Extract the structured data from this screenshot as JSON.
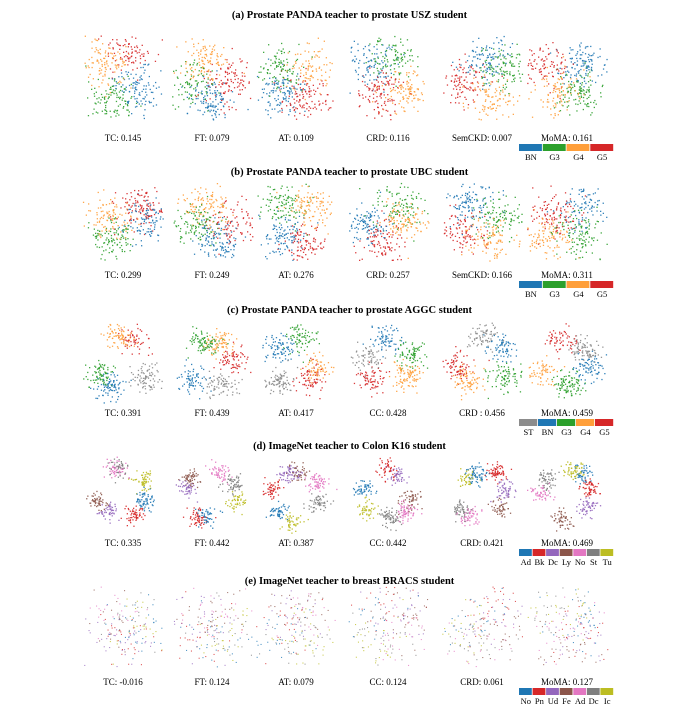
{
  "figure": {
    "rows": [
      {
        "title": "(a) Prostate PANDA teacher to prostate USZ student",
        "panels": [
          {
            "label": "TC: 0.145"
          },
          {
            "label": "FT: 0.079"
          },
          {
            "label": "AT: 0.109"
          },
          {
            "label": "CRD: 0.116"
          },
          {
            "label": "SemCKD: 0.007"
          },
          {
            "label": "MoMA: 0.161"
          }
        ],
        "legend": [
          {
            "name": "BN",
            "color": "#1f77b4"
          },
          {
            "name": "G3",
            "color": "#2ca02c"
          },
          {
            "name": "G4",
            "color": "#ff9f3a"
          },
          {
            "name": "G5",
            "color": "#d62728"
          }
        ]
      },
      {
        "title": "(b) Prostate PANDA teacher to prostate UBC student",
        "panels": [
          {
            "label": "TC: 0.299"
          },
          {
            "label": "FT: 0.249"
          },
          {
            "label": "AT: 0.276"
          },
          {
            "label": "CRD: 0.257"
          },
          {
            "label": "SemCKD: 0.166"
          },
          {
            "label": "MoMA: 0.311"
          }
        ],
        "legend": [
          {
            "name": "BN",
            "color": "#1f77b4"
          },
          {
            "name": "G3",
            "color": "#2ca02c"
          },
          {
            "name": "G4",
            "color": "#ff9f3a"
          },
          {
            "name": "G5",
            "color": "#d62728"
          }
        ]
      },
      {
        "title": "(c) Prostate PANDA teacher to prostate AGGC student",
        "panels": [
          {
            "label": "TC: 0.391"
          },
          {
            "label": "FT: 0.439"
          },
          {
            "label": "AT: 0.417"
          },
          {
            "label": "CC: 0.428"
          },
          {
            "label": "CRD : 0.456"
          },
          {
            "label": "MoMA: 0.459"
          }
        ],
        "legend": [
          {
            "name": "ST",
            "color": "#8c8c8c"
          },
          {
            "name": "BN",
            "color": "#1f77b4"
          },
          {
            "name": "G3",
            "color": "#2ca02c"
          },
          {
            "name": "G4",
            "color": "#ff9f3a"
          },
          {
            "name": "G5",
            "color": "#d62728"
          }
        ]
      },
      {
        "title": "(d) ImageNet teacher to Colon K16 student",
        "panels": [
          {
            "label": "TC: 0.335"
          },
          {
            "label": "FT: 0.442"
          },
          {
            "label": "AT: 0.387"
          },
          {
            "label": "CC: 0.442"
          },
          {
            "label": "CRD: 0.421"
          },
          {
            "label": "MoMA: 0.469"
          }
        ],
        "legend": [
          {
            "name": "Ad",
            "color": "#1f77b4"
          },
          {
            "name": "Bk",
            "color": "#d62728"
          },
          {
            "name": "Dc",
            "color": "#9467bd"
          },
          {
            "name": "Ly",
            "color": "#8c564b"
          },
          {
            "name": "No",
            "color": "#e377c2"
          },
          {
            "name": "St",
            "color": "#7f7f7f"
          },
          {
            "name": "Tu",
            "color": "#bcbd22"
          }
        ]
      },
      {
        "title": "(e) ImageNet teacher to breast BRACS student",
        "panels": [
          {
            "label": "TC: -0.016"
          },
          {
            "label": "FT: 0.124"
          },
          {
            "label": "AT: 0.079"
          },
          {
            "label": "CC: 0.124"
          },
          {
            "label": "CRD: 0.061"
          },
          {
            "label": "MoMA: 0.127"
          }
        ],
        "legend": [
          {
            "name": "No",
            "color": "#1f77b4"
          },
          {
            "name": "Pn",
            "color": "#d62728"
          },
          {
            "name": "Ud",
            "color": "#9467bd"
          },
          {
            "name": "Fe",
            "color": "#8c564b"
          },
          {
            "name": "Ad",
            "color": "#e377c2"
          },
          {
            "name": "Dc",
            "color": "#7f7f7f"
          },
          {
            "name": "Ic",
            "color": "#bcbd22"
          }
        ]
      }
    ]
  }
}
